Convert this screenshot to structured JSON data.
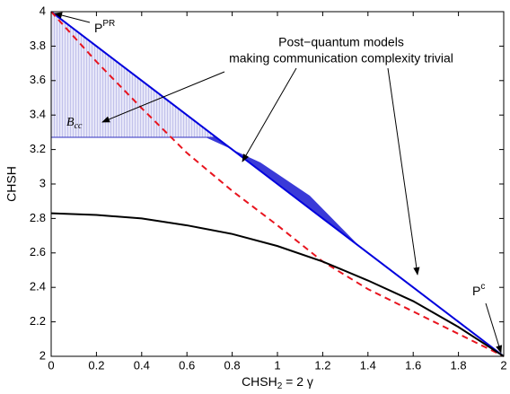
{
  "chart_data": {
    "type": "line",
    "xlabel": {
      "text": "CHSH",
      "sub": "2",
      "rest": " = 2 γ"
    },
    "ylabel": "CHSH",
    "x": [
      0,
      0.2,
      0.4,
      0.6,
      0.8,
      1.0,
      1.2,
      1.4,
      1.6,
      1.8,
      2
    ],
    "series": [
      {
        "color": "#0000dd",
        "dash": false,
        "values": [
          4,
          3.8,
          3.6,
          3.4,
          3.2,
          3.0,
          2.8,
          2.6,
          2.4,
          2.2,
          2
        ]
      },
      {
        "color": "#e8141e",
        "dash": true,
        "values": [
          4,
          3.71,
          3.44,
          3.18,
          2.96,
          2.76,
          2.55,
          2.39,
          2.26,
          2.13,
          2
        ]
      },
      {
        "color": "#000000",
        "dash": false,
        "values": [
          2.83,
          2.82,
          2.8,
          2.76,
          2.71,
          2.64,
          2.55,
          2.44,
          2.32,
          2.17,
          2
        ]
      }
    ],
    "xlim": [
      0,
      2
    ],
    "ylim": [
      2,
      4
    ],
    "xticks": [
      0,
      0.2,
      0.4,
      0.6,
      0.8,
      1,
      1.2,
      1.4,
      1.6,
      1.8,
      2
    ],
    "yticks": [
      2,
      2.2,
      2.4,
      2.6,
      2.8,
      3,
      3.2,
      3.4,
      3.6,
      3.8,
      4
    ],
    "annotations": {
      "ppr": {
        "text": "P",
        "sup": "PR"
      },
      "pc": {
        "text": "P",
        "sup": "c"
      },
      "bcc": {
        "text": "B",
        "sub": "cc"
      },
      "post1": "Post−quantum models",
      "post2": "making communication complexity trivial"
    }
  }
}
